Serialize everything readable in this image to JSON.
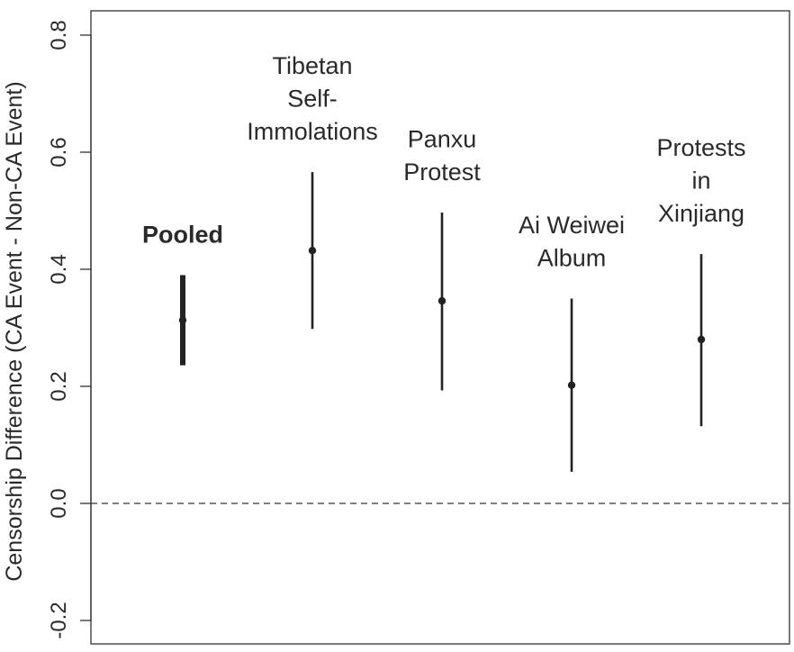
{
  "chart_data": {
    "type": "errorbar",
    "ylabel": "Censorship Difference (CA Event - Non-CA Event)",
    "ylim": [
      -0.2,
      0.8
    ],
    "yticks": [
      "-0.2",
      "0.0",
      "0.2",
      "0.4",
      "0.6",
      "0.8"
    ],
    "reference_line": {
      "y": 0.0,
      "style": "dashed"
    },
    "grid": false,
    "points": [
      {
        "label_lines": [
          "Pooled"
        ],
        "bold": true,
        "estimate": 0.313,
        "lower": 0.236,
        "upper": 0.39
      },
      {
        "label_lines": [
          "Tibetan",
          "Self-",
          "Immolations"
        ],
        "bold": false,
        "estimate": 0.432,
        "lower": 0.298,
        "upper": 0.566
      },
      {
        "label_lines": [
          "Panxu",
          "Protest"
        ],
        "bold": false,
        "estimate": 0.346,
        "lower": 0.193,
        "upper": 0.497
      },
      {
        "label_lines": [
          "Ai Weiwei",
          "Album"
        ],
        "bold": false,
        "estimate": 0.202,
        "lower": 0.054,
        "upper": 0.35
      },
      {
        "label_lines": [
          "Protests",
          "in",
          "Xinjiang"
        ],
        "bold": false,
        "estimate": 0.28,
        "lower": 0.132,
        "upper": 0.426
      }
    ]
  }
}
